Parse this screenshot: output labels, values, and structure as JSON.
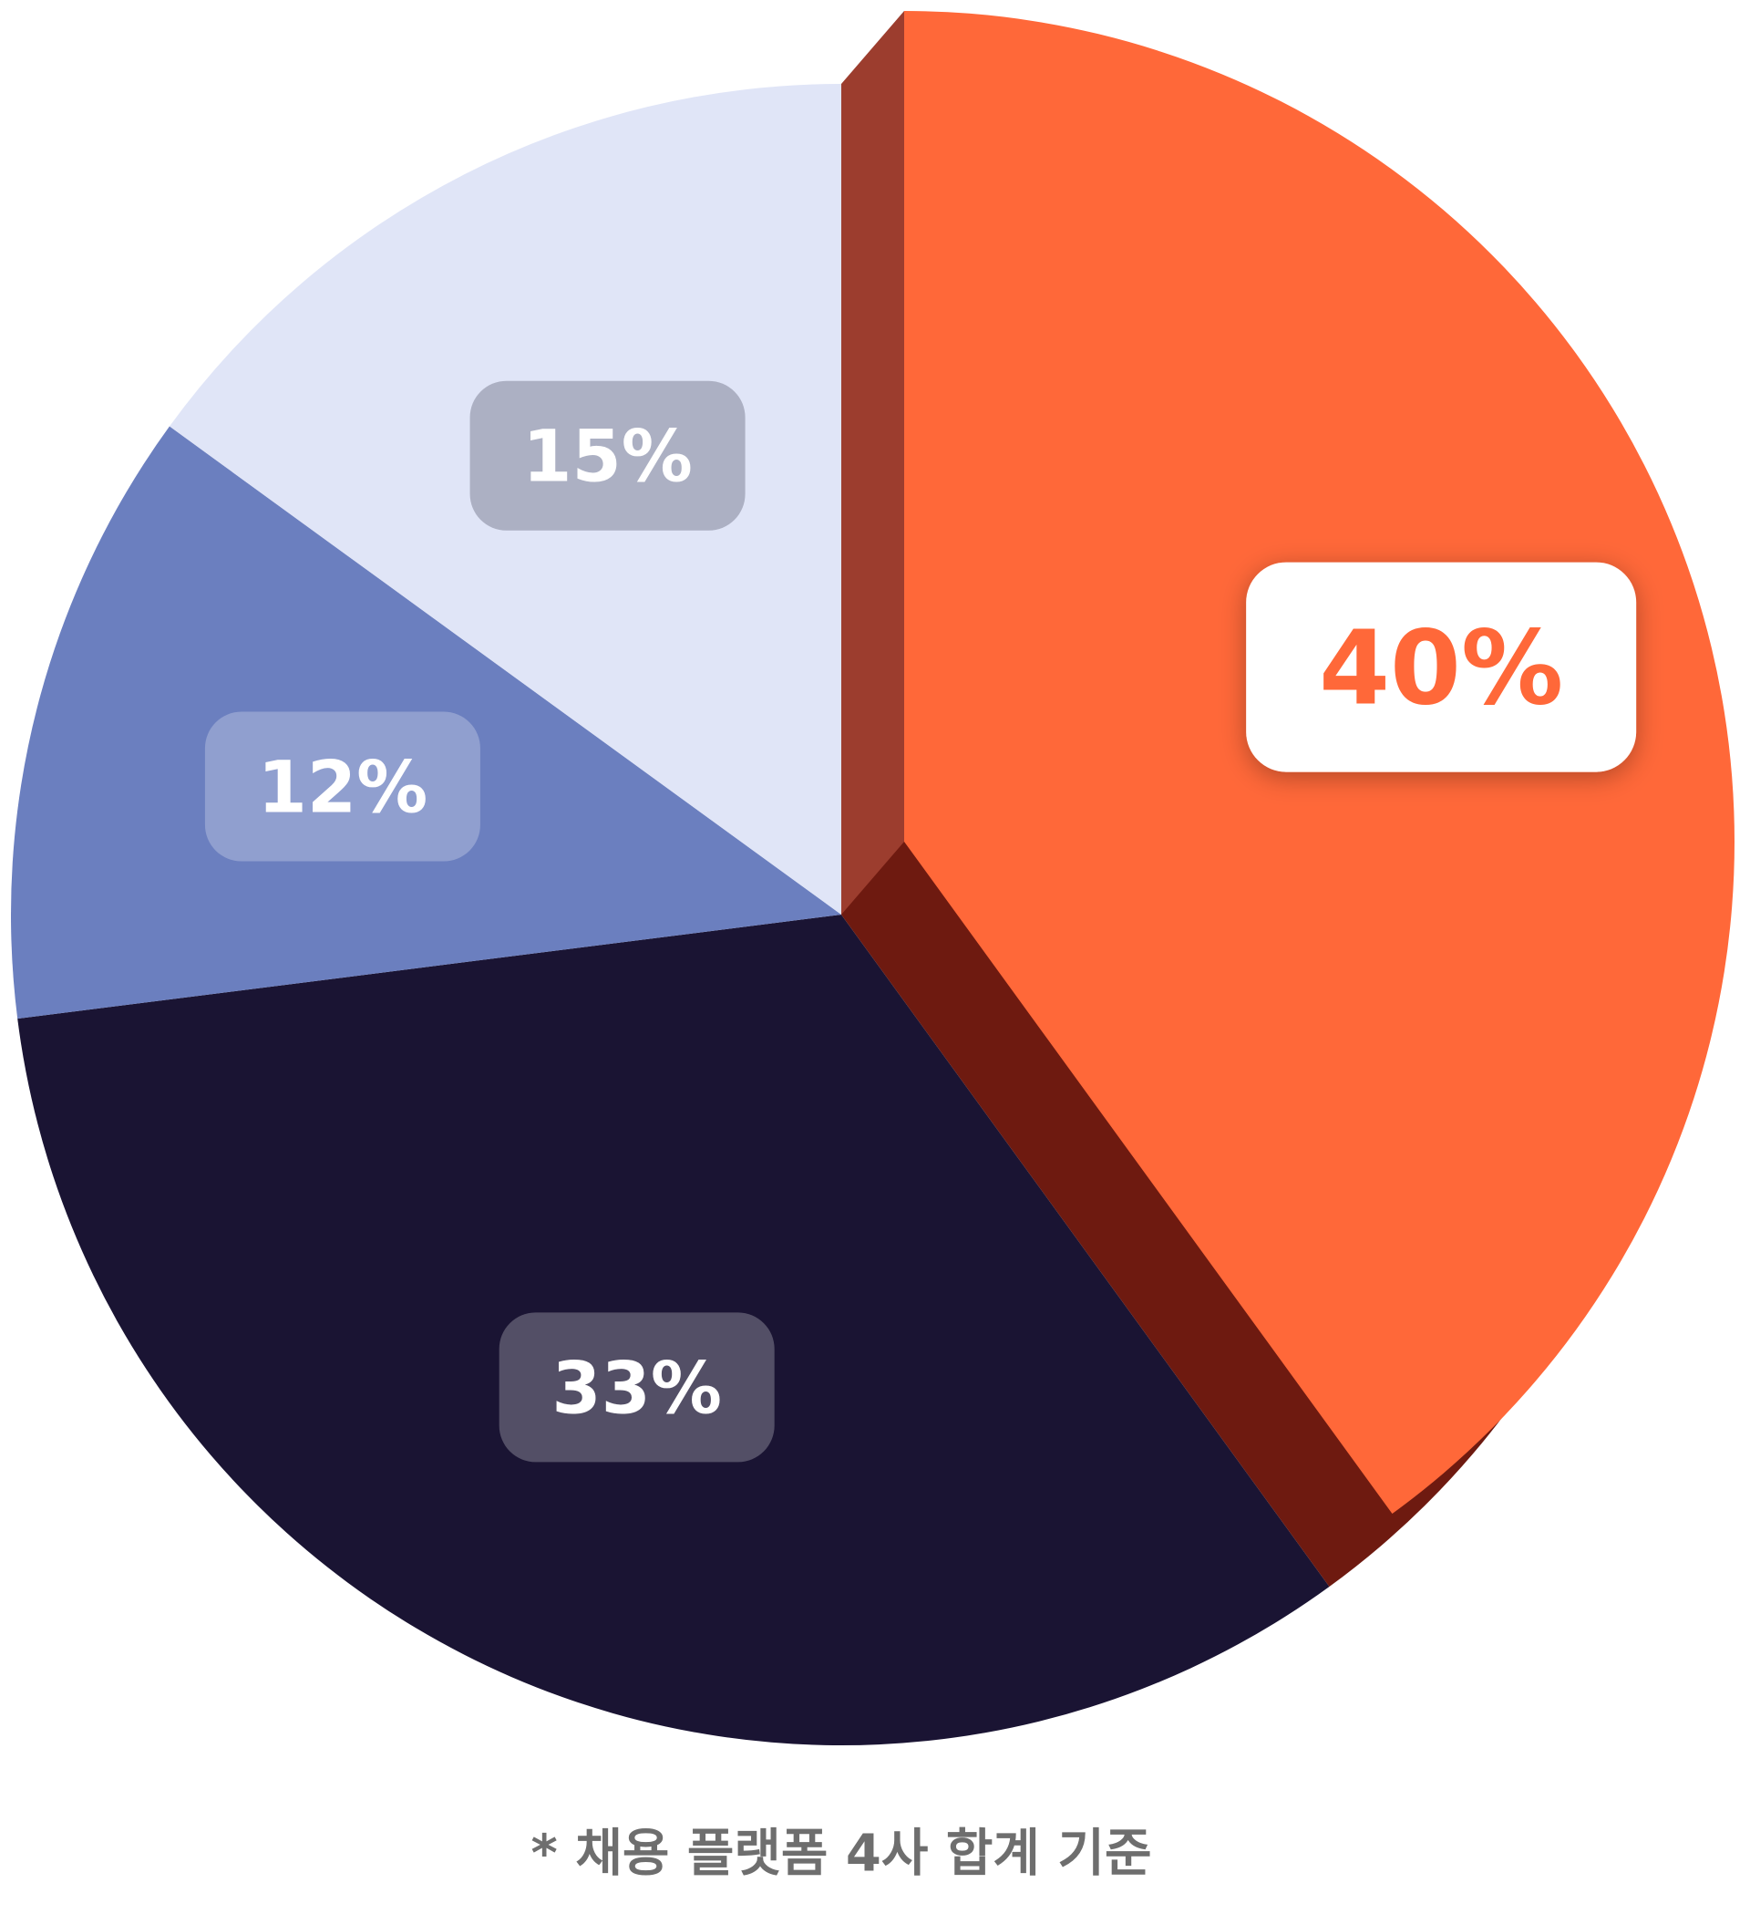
{
  "chart_data": {
    "type": "pie",
    "categories": [
      null,
      null,
      null,
      null
    ],
    "values": [
      40,
      33,
      12,
      15
    ],
    "value_labels": [
      "40%",
      "33%",
      "12%",
      "15%"
    ],
    "colors": [
      "#ff6839",
      "#1a1433",
      "#6b7fbf",
      "#e0e5f7"
    ],
    "exploded": [
      true,
      false,
      false,
      false
    ],
    "note": "* 채용 플랫폼 4사 합계 기준"
  }
}
